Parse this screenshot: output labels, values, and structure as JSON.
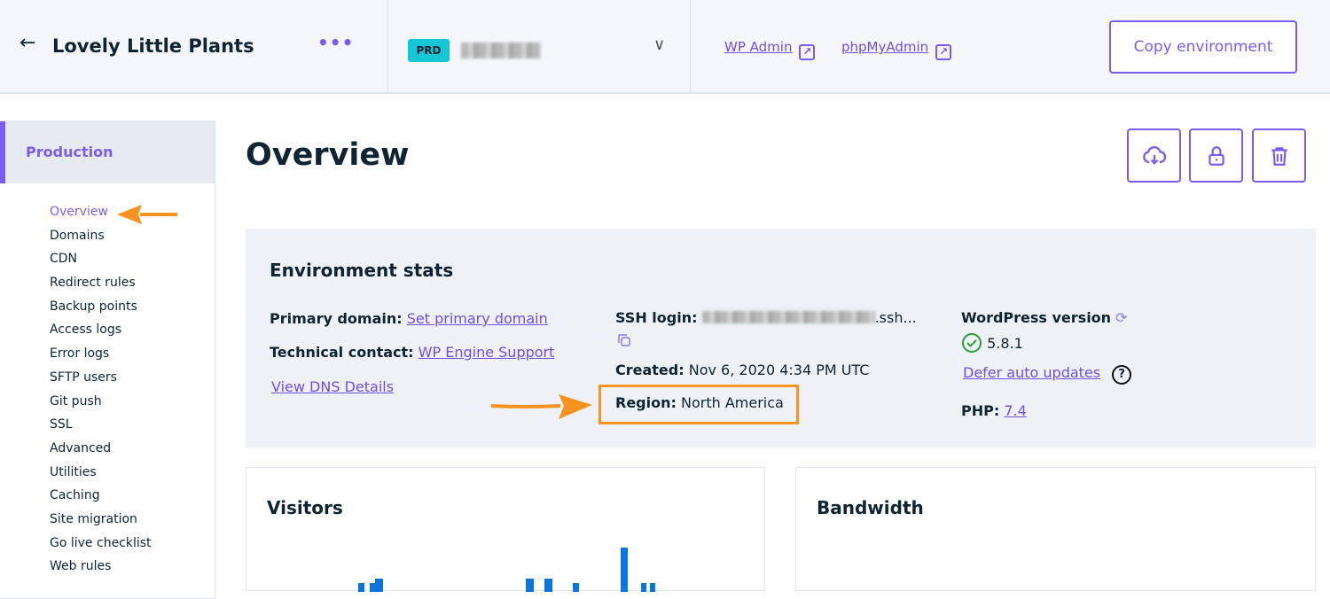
{
  "header": {
    "site_name": "Lovely Little Plants",
    "env_badge": "PRD",
    "wp_admin": "WP Admin",
    "phpmyadmin": "phpMyAdmin",
    "copy_environment": "Copy environment"
  },
  "sidebar": {
    "section": "Production",
    "items": [
      "Overview",
      "Domains",
      "CDN",
      "Redirect rules",
      "Backup points",
      "Access logs",
      "Error logs",
      "SFTP users",
      "Git push",
      "SSL",
      "Advanced",
      "Utilities",
      "Caching",
      "Site migration",
      "Go live checklist",
      "Web rules"
    ],
    "active": "Overview"
  },
  "main": {
    "title": "Overview",
    "icons": [
      "cloud-download-icon",
      "lock-icon",
      "trash-icon"
    ]
  },
  "stats": {
    "title": "Environment stats",
    "primary_domain_label": "Primary domain:",
    "primary_domain_link": "Set primary domain",
    "technical_contact_label": "Technical contact:",
    "technical_contact_link": "WP Engine Support",
    "dns_link": "View DNS Details",
    "ssh_label": "SSH login:",
    "ssh_suffix": ".ssh...",
    "created_label": "Created:",
    "created_value": "Nov 6, 2020 4:34 PM UTC",
    "region_label": "Region:",
    "region_value": "North America",
    "wp_label": "WordPress version",
    "wp_version": "5.8.1",
    "defer_link": "Defer auto updates",
    "php_label": "PHP:",
    "php_version": "7.4"
  },
  "cards": {
    "visitors": "Visitors",
    "bandwidth": "Bandwidth"
  },
  "colors": {
    "accent": "#7b5cf0",
    "badge": "#15c7d4",
    "annotation": "#f7931e",
    "bar": "#0b74de"
  }
}
